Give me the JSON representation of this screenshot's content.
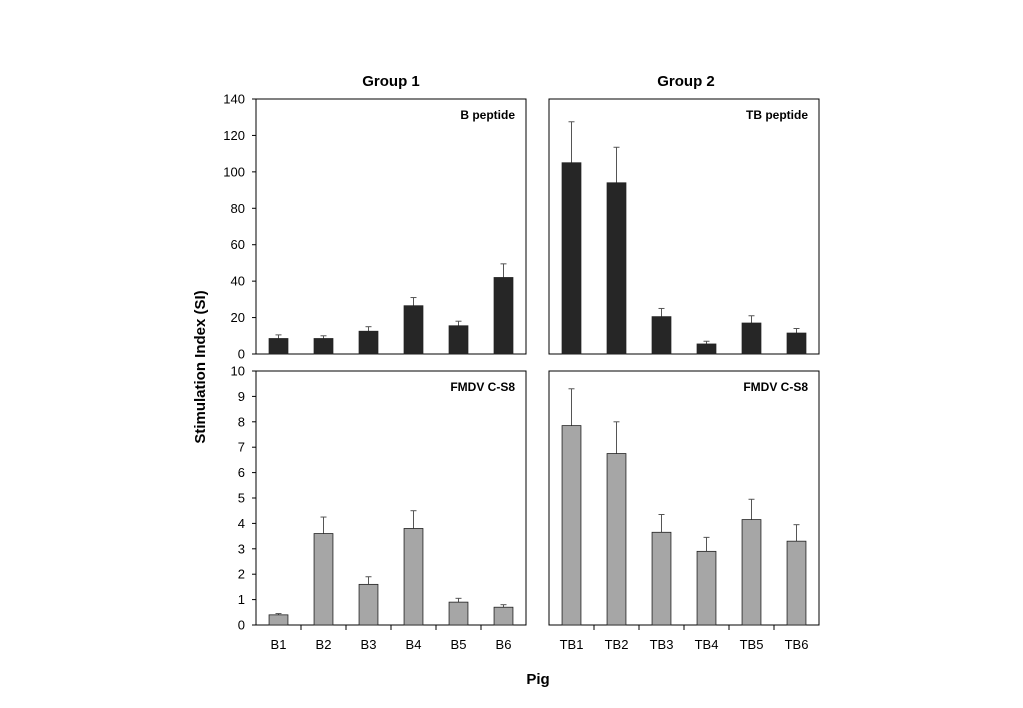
{
  "figure": {
    "ylabel": "Stimulation Index (SI)",
    "xlabel": "Pig",
    "group_titles": [
      "Group 1",
      "Group 2"
    ]
  },
  "colors": {
    "peptide_bar": "#262626",
    "fmdv_bar": "#a6a6a6",
    "axis": "#000000"
  },
  "chart_data": [
    {
      "type": "bar",
      "title": "Group 1",
      "panel_label": "B peptide",
      "categories": [
        "B1",
        "B2",
        "B3",
        "B4",
        "B5",
        "B6"
      ],
      "values": [
        8.5,
        8.5,
        12.5,
        26.5,
        15.5,
        42
      ],
      "errors": [
        2,
        1.5,
        2.5,
        4.5,
        2.5,
        7.5
      ],
      "ylim": [
        0,
        140
      ],
      "yticks": [
        0,
        20,
        40,
        60,
        80,
        100,
        120,
        140
      ],
      "ytick_labels": [
        "0",
        "20",
        "40",
        "60",
        "80",
        "100",
        "120",
        "140"
      ],
      "grid": false,
      "show_x_ticks": false
    },
    {
      "type": "bar",
      "title": "Group 2",
      "panel_label": "TB peptide",
      "categories": [
        "TB1",
        "TB2",
        "TB3",
        "TB4",
        "TB5",
        "TB6"
      ],
      "values": [
        105,
        94,
        20.5,
        5.5,
        17,
        11.5
      ],
      "errors": [
        22.5,
        19.5,
        4.5,
        1.5,
        4,
        2.5
      ],
      "ylim": [
        0,
        140
      ],
      "grid": false,
      "show_x_ticks": false
    },
    {
      "type": "bar",
      "panel_label": "FMDV C-S8",
      "categories": [
        "B1",
        "B2",
        "B3",
        "B4",
        "B5",
        "B6"
      ],
      "values": [
        0.4,
        3.6,
        1.6,
        3.8,
        0.9,
        0.7
      ],
      "errors": [
        0.05,
        0.65,
        0.3,
        0.7,
        0.15,
        0.1
      ],
      "ylim": [
        0,
        10
      ],
      "yticks": [
        0,
        1,
        2,
        3,
        4,
        5,
        6,
        7,
        8,
        9,
        10
      ],
      "ytick_labels": [
        "0",
        "1",
        "2",
        "3",
        "4",
        "5",
        "6",
        "7",
        "8",
        "9",
        "10"
      ],
      "grid": false,
      "show_x_ticks": true
    },
    {
      "type": "bar",
      "panel_label": "FMDV C-S8",
      "categories": [
        "TB1",
        "TB2",
        "TB3",
        "TB4",
        "TB5",
        "TB6"
      ],
      "values": [
        7.85,
        6.75,
        3.65,
        2.9,
        4.15,
        3.3
      ],
      "errors": [
        1.45,
        1.25,
        0.7,
        0.55,
        0.8,
        0.65
      ],
      "ylim": [
        0,
        10
      ],
      "grid": false,
      "show_x_ticks": true
    }
  ]
}
